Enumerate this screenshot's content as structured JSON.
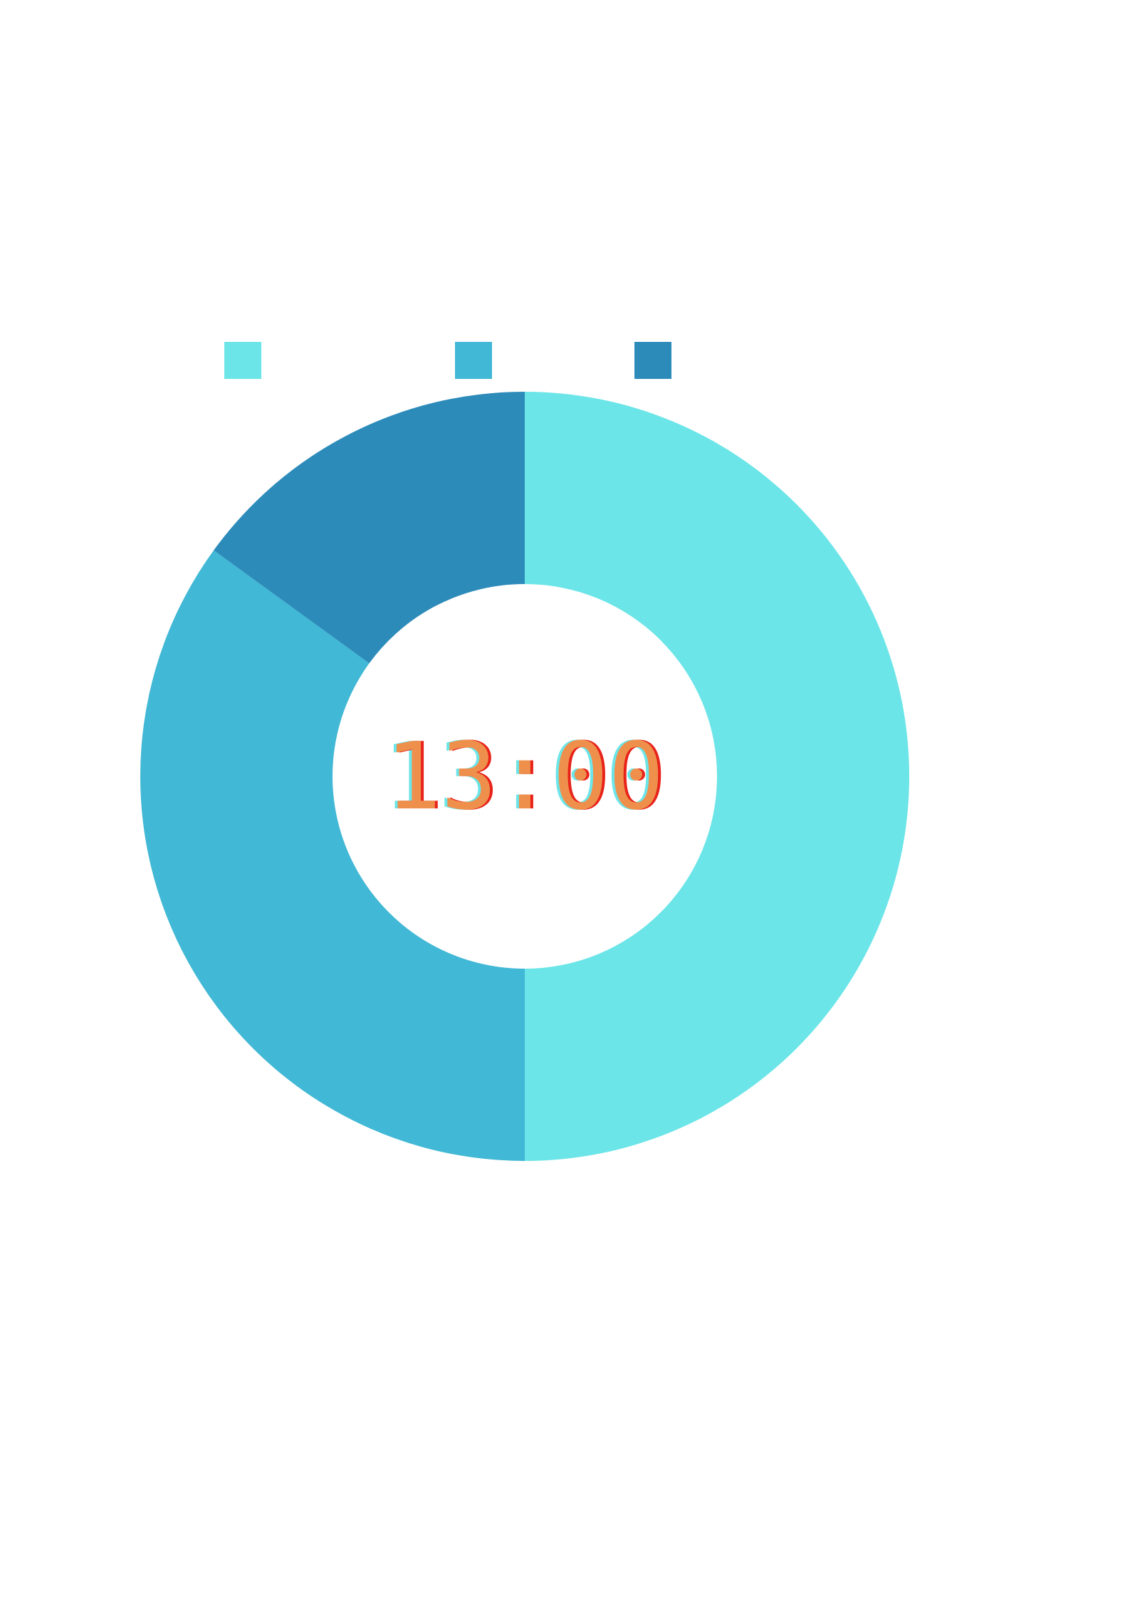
{
  "chart_data": {
    "type": "pie",
    "variant": "donut",
    "title": "",
    "center_label": "13:00",
    "slices": [
      {
        "value": 50.0,
        "color": "#6ce5e8"
      },
      {
        "value": 35.0,
        "color": "#41b8d5"
      },
      {
        "value": 15.0,
        "color": "#2d8bba"
      }
    ],
    "legend": {
      "placement": "top-left",
      "entries": [
        {
          "label": "",
          "color": "#6ce5e8"
        },
        {
          "label": "",
          "color": "#41b8d5"
        },
        {
          "label": "",
          "color": "#2d8bba"
        }
      ]
    },
    "center_label_colors": {
      "fill": "#ef8f4c",
      "shadow_left": "#6ce5e8",
      "shadow_right": "#e8231a"
    }
  }
}
